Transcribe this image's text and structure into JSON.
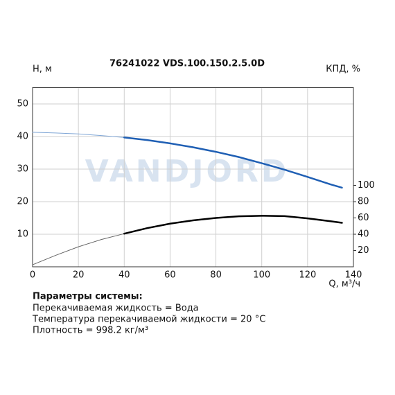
{
  "chart_data": {
    "type": "line",
    "title": "76241022 VDS.100.150.2.5.0D",
    "ylabel": "H, м",
    "y2label": "КПД, %",
    "xlabel": "Q, м³/ч",
    "watermark": "VANDJORD",
    "xlim": [
      0,
      140
    ],
    "xticks": [
      0,
      20,
      40,
      60,
      80,
      100,
      120,
      140
    ],
    "ylim": [
      0,
      55
    ],
    "yticks": [
      10,
      20,
      30,
      40,
      50
    ],
    "y2lim": [
      0,
      220
    ],
    "y2ticks": [
      20,
      40,
      60,
      80,
      100
    ],
    "grid": true,
    "series": [
      {
        "color": "#7fa6d6",
        "width": 1,
        "x": [
          0,
          10,
          20,
          30,
          40
        ],
        "values": [
          41.3,
          41.1,
          40.8,
          40.3,
          39.7
        ]
      },
      {
        "color": "#1f5fb4",
        "width": 2.5,
        "x": [
          40,
          50,
          60,
          70,
          80,
          90,
          100,
          110,
          120,
          130,
          135
        ],
        "values": [
          39.7,
          38.9,
          37.9,
          36.7,
          35.3,
          33.7,
          31.8,
          29.8,
          27.6,
          25.3,
          24.3
        ]
      },
      {
        "color": "#666666",
        "width": 1,
        "axis": "y2",
        "x": [
          0,
          10,
          20,
          30,
          40
        ],
        "values": [
          2.5,
          14,
          24.6,
          33.5,
          40.7
        ]
      },
      {
        "color": "#000000",
        "width": 2.5,
        "axis": "y2",
        "x": [
          40,
          50,
          60,
          70,
          80,
          90,
          100,
          110,
          120,
          130,
          135
        ],
        "values": [
          40.7,
          47.5,
          53,
          57,
          60,
          62,
          62.7,
          62.2,
          59.5,
          56,
          54
        ]
      }
    ],
    "notes": {
      "heading": "Параметры системы:",
      "lines": [
        "Перекачиваемая жидкость = Вода",
        "Температура перекачиваемой жидкости = 20 °C",
        "Плотность = 998.2 кг/м³"
      ]
    }
  }
}
